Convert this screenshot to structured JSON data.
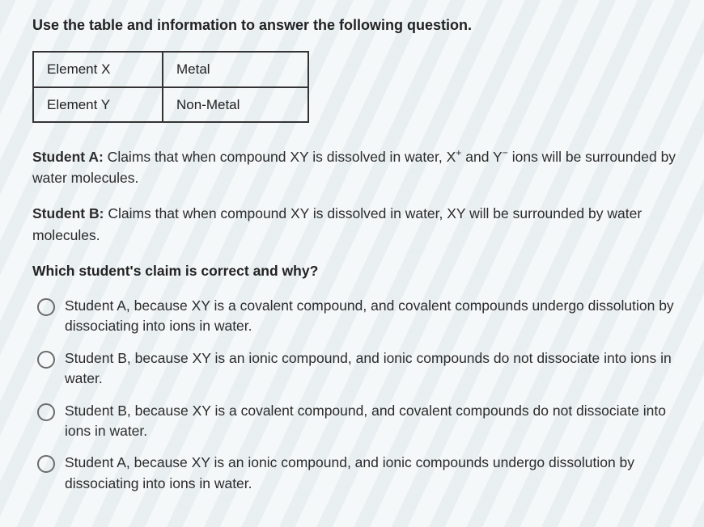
{
  "instruction": "Use the table and information to answer the following question.",
  "table": {
    "rows": [
      [
        "Element X",
        "Metal"
      ],
      [
        "Element Y",
        "Non-Metal"
      ]
    ]
  },
  "studentA": {
    "label": "Student A:",
    "pre": " Claims that when compound XY is dissolved in water, X",
    "supA": "+",
    "mid": " and Y",
    "supB": "−",
    "post": " ions will be surrounded by water molecules."
  },
  "studentB": {
    "label": "Student B:",
    "text": " Claims that when compound XY is dissolved in water, XY will be surrounded by water molecules."
  },
  "prompt": "Which student's claim is correct and why?",
  "options": [
    "Student A, because XY is a covalent compound, and covalent compounds undergo dissolution by dissociating into ions in water.",
    "Student B, because XY is an ionic compound, and ionic compounds do not dissociate into ions in water.",
    "Student B, because XY is a covalent compound, and covalent compounds do not dissociate into ions in water.",
    "Student A, because XY is an ionic compound, and ionic compounds undergo dissolution by dissociating into ions in water."
  ],
  "colors": {
    "text": "#2b2b2b",
    "border": "#333333",
    "radio_border": "#6b6b6b",
    "background": "#f5f7f8"
  }
}
